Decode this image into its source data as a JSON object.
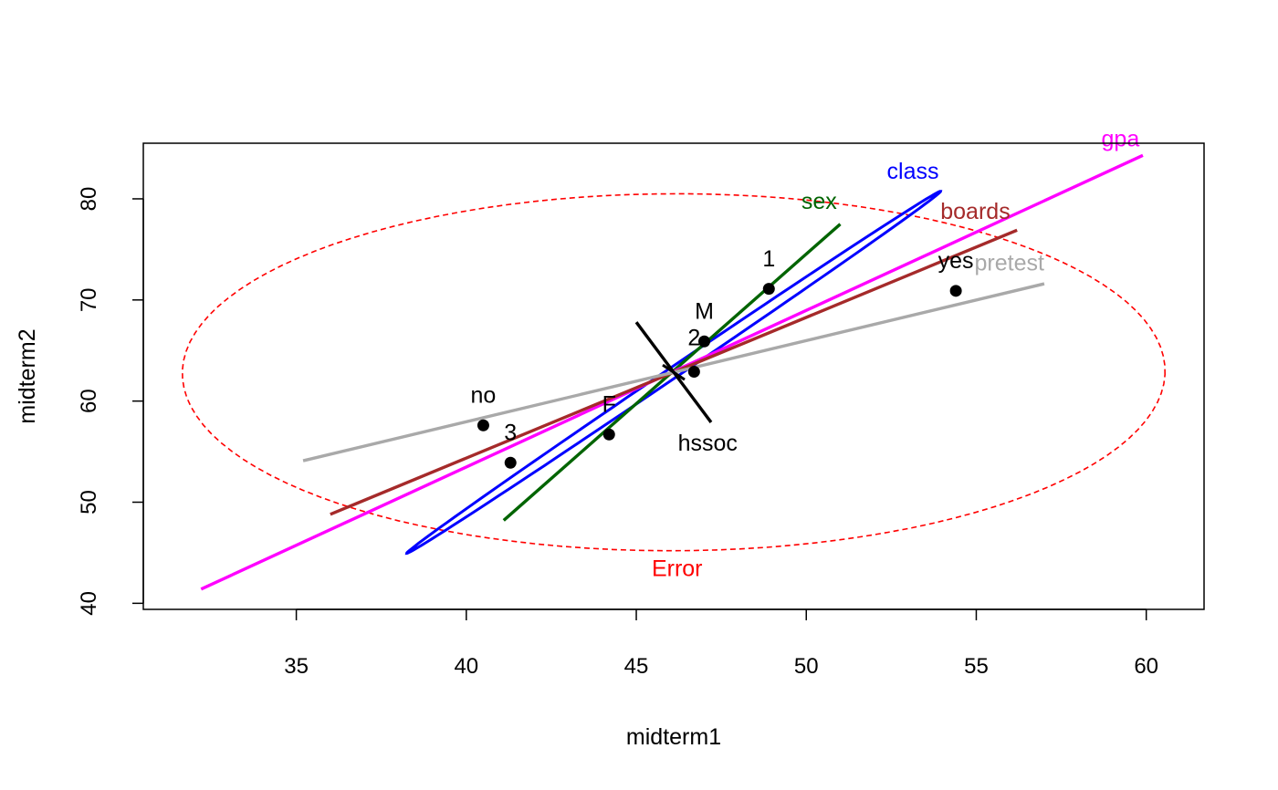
{
  "chart_data": {
    "type": "scatter",
    "xlabel": "midterm1",
    "ylabel": "midterm2",
    "xlim": [
      30.5,
      61.7
    ],
    "ylim": [
      39.4,
      85.5
    ],
    "xticks": [
      35,
      40,
      45,
      50,
      55,
      60
    ],
    "yticks": [
      40,
      50,
      60,
      70,
      80
    ],
    "points": [
      {
        "label": "1",
        "x": 48.9,
        "y": 71.1,
        "label_dx": 0,
        "label_dy": 2.6
      },
      {
        "label": "2",
        "x": 46.7,
        "y": 62.9,
        "label_dx": 0.0,
        "label_dy": 3.0
      },
      {
        "label": "3",
        "x": 41.3,
        "y": 53.9,
        "label_dx": 0,
        "label_dy": 2.6
      },
      {
        "label": "M",
        "x": 47.0,
        "y": 65.9,
        "label_dx": 0,
        "label_dy": 2.6
      },
      {
        "label": "F",
        "x": 44.2,
        "y": 56.7,
        "label_dx": 0,
        "label_dy": 2.6
      },
      {
        "label": "no",
        "x": 40.5,
        "y": 57.6,
        "label_dx": 0,
        "label_dy": 2.6
      },
      {
        "label": "yes",
        "x": 54.4,
        "y": 70.9,
        "label_dx": 0,
        "label_dy": 2.6
      }
    ],
    "error_ellipse": {
      "label": "Error",
      "color": "#ff0000",
      "center": [
        46.1,
        62.85
      ],
      "a": [
        14.45,
        -0.23
      ],
      "b": [
        0.28,
        17.65
      ],
      "label_pos": [
        46.2,
        42.7
      ]
    },
    "terms": [
      {
        "name": "class",
        "shape": "ellipse",
        "color": "#0000ff",
        "center": [
          46.1,
          62.85
        ],
        "a": [
          7.85,
          17.9
        ],
        "b": [
          -0.15,
          0.3
        ],
        "label_pos": [
          53.9,
          82.0
        ]
      },
      {
        "name": "sex",
        "color": "#006400",
        "from": [
          41.1,
          48.2
        ],
        "to": [
          51.0,
          77.5
        ],
        "label_pos": [
          50.9,
          79.0
        ]
      },
      {
        "name": "gpa",
        "color": "#ff00ff",
        "from": [
          32.2,
          41.4
        ],
        "to": [
          59.9,
          84.3
        ],
        "label_pos": [
          59.8,
          85.2
        ]
      },
      {
        "name": "boards",
        "color": "#a52a2a",
        "from": [
          36.0,
          48.8
        ],
        "to": [
          56.2,
          76.9
        ],
        "label_pos": [
          56.0,
          78.0
        ]
      },
      {
        "name": "pretest",
        "color": "#a9a9a9",
        "from": [
          35.2,
          54.1
        ],
        "to": [
          57.0,
          71.6
        ],
        "label_pos": [
          57.0,
          72.9
        ]
      },
      {
        "name": "hssoc",
        "color": "#000000",
        "from": [
          45.0,
          67.8
        ],
        "to": [
          47.2,
          57.9
        ],
        "label_pos": [
          47.1,
          55.1
        ]
      }
    ],
    "grid": false
  }
}
